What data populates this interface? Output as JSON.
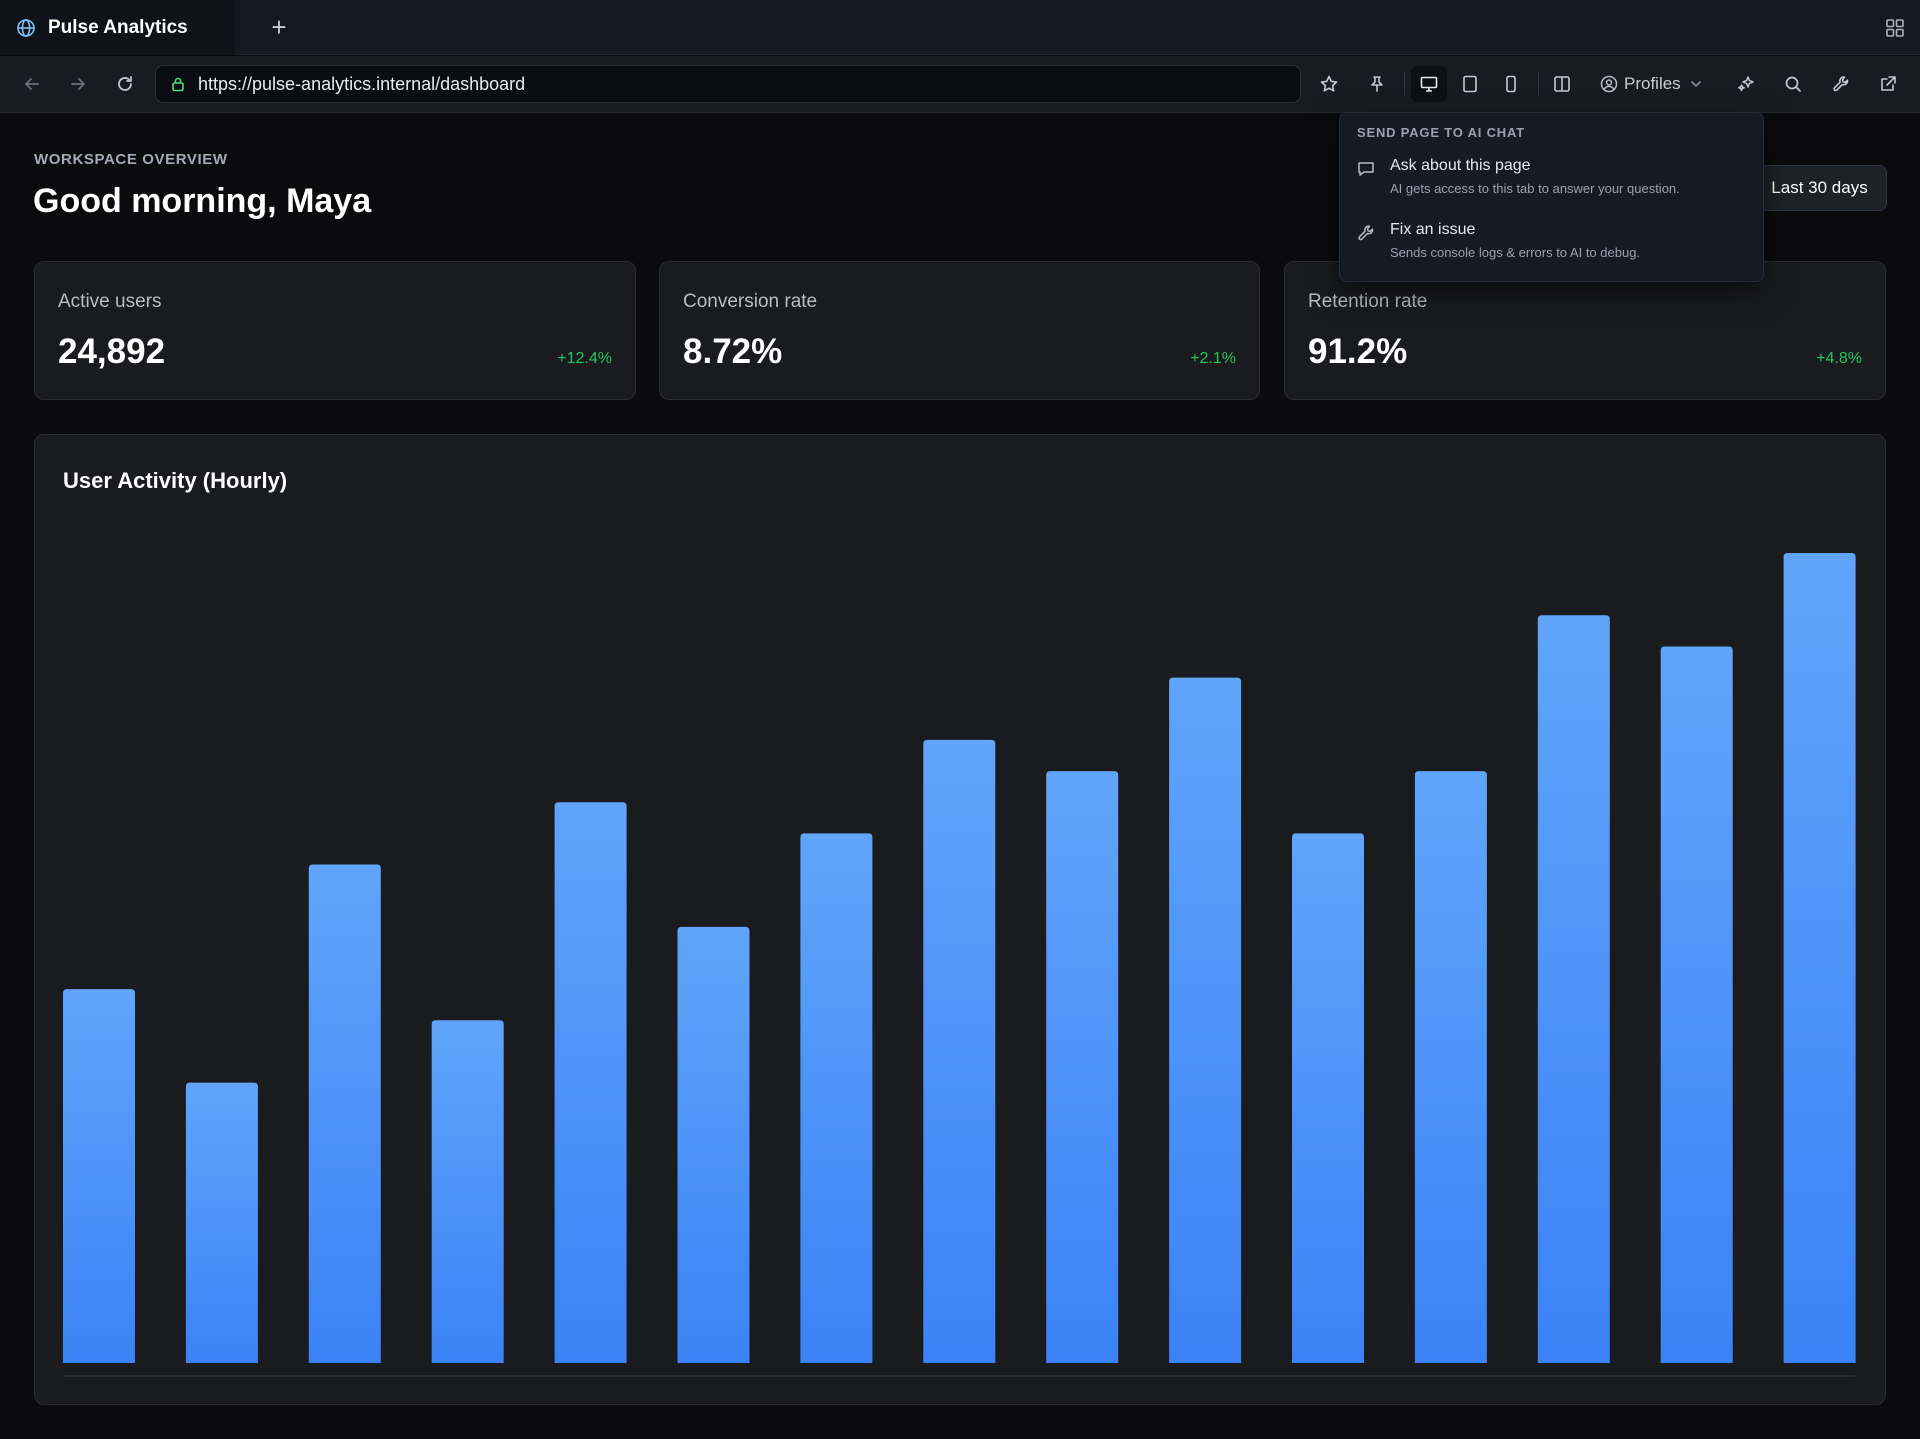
{
  "browser": {
    "tab_title": "Pulse Analytics",
    "new_tab_symbol": "+",
    "url": "https://pulse-analytics.internal/dashboard",
    "profiles_label": "Profiles"
  },
  "ai_menu": {
    "header": "SEND PAGE TO AI CHAT",
    "items": [
      {
        "title": "Ask about this page",
        "desc": "AI gets access to this tab to answer your question.",
        "icon": "chat-bubble-icon"
      },
      {
        "title": "Fix an issue",
        "desc": "Sends console logs & errors to AI to debug.",
        "icon": "wrench-icon"
      }
    ]
  },
  "page": {
    "eyebrow": "WORKSPACE OVERVIEW",
    "greeting": "Good morning, Maya",
    "range_button": "Last 30 days"
  },
  "kpis": [
    {
      "label": "Active users",
      "value": "24,892",
      "delta": "+12.4%"
    },
    {
      "label": "Conversion rate",
      "value": "8.72%",
      "delta": "+2.1%"
    },
    {
      "label": "Retention rate",
      "value": "91.2%",
      "delta": "+4.8%"
    }
  ],
  "colors": {
    "accent_green": "#22c55e",
    "bar_top": "#60a5fa",
    "bar_bottom": "#3b82f6"
  },
  "chart_data": {
    "type": "bar",
    "title": "User Activity (Hourly)",
    "xlabel": "",
    "ylabel": "",
    "values": [
      48,
      36,
      64,
      44,
      72,
      56,
      68,
      80,
      76,
      88,
      68,
      76,
      96,
      92,
      104
    ],
    "ylim": [
      0,
      104
    ],
    "grid": false,
    "legend": "none"
  }
}
